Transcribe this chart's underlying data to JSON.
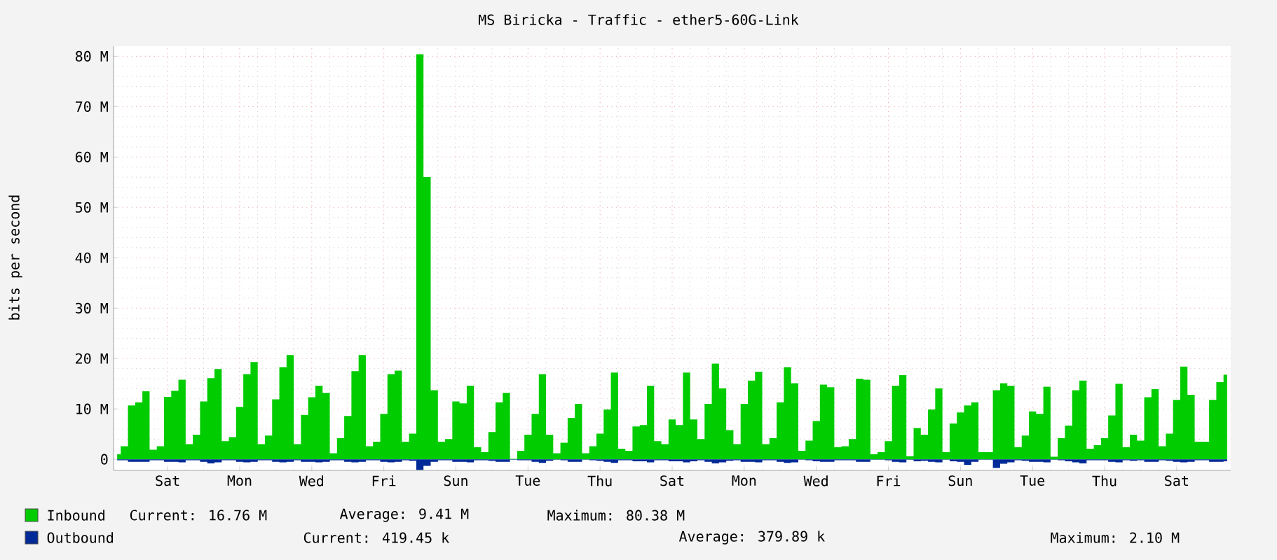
{
  "chart_data": {
    "type": "area",
    "title": "MS Biricka - Traffic - ether5-60G-Link",
    "ylabel": "bits per second",
    "categories": [
      null,
      null,
      null,
      null,
      null,
      null,
      null,
      "Sat",
      null,
      null,
      null,
      null,
      null,
      null,
      null,
      null,
      null,
      "Mon",
      null,
      null,
      null,
      null,
      null,
      null,
      null,
      null,
      null,
      "Wed",
      null,
      null,
      null,
      null,
      null,
      null,
      null,
      null,
      null,
      "Fri",
      null,
      null,
      null,
      null,
      null,
      null,
      null,
      null,
      null,
      "Sun",
      null,
      null,
      null,
      null,
      null,
      null,
      null,
      null,
      null,
      "Tue",
      null,
      null,
      null,
      null,
      null,
      null,
      null,
      null,
      null,
      "Thu",
      null,
      null,
      null,
      null,
      null,
      null,
      null,
      null,
      null,
      "Sat",
      null,
      null,
      null,
      null,
      null,
      null,
      null,
      null,
      null,
      "Mon",
      null,
      null,
      null,
      null,
      null,
      null,
      null,
      null,
      null,
      "Wed",
      null,
      null,
      null,
      null,
      null,
      null,
      null,
      null,
      null,
      "Fri",
      null,
      null,
      null,
      null,
      null,
      null,
      null,
      null,
      null,
      "Sun",
      null,
      null,
      null,
      null,
      null,
      null,
      null,
      null,
      null,
      "Tue",
      null,
      null,
      null,
      null,
      null,
      null,
      null,
      null,
      null,
      "Thu",
      null,
      null,
      null,
      null,
      null,
      null,
      null,
      null,
      null,
      "Sat",
      null,
      null,
      null,
      null,
      null,
      null,
      null
    ],
    "series": [
      {
        "name": "Inbound",
        "color": "#00cc00",
        "values": [
          1.0,
          2.6,
          10.7,
          11.3,
          13.5,
          1.9,
          2.6,
          12.4,
          13.6,
          15.8,
          3.0,
          4.9,
          11.5,
          16.1,
          17.9,
          3.6,
          4.4,
          10.4,
          16.9,
          19.3,
          3.0,
          4.7,
          11.9,
          18.3,
          20.7,
          3.0,
          8.8,
          12.3,
          14.6,
          13.2,
          1.2,
          4.2,
          8.6,
          17.5,
          20.7,
          2.6,
          3.5,
          9.0,
          16.9,
          17.6,
          3.5,
          5.1,
          80.4,
          56.0,
          13.7,
          3.5,
          4.0,
          11.5,
          11.1,
          14.6,
          2.4,
          1.4,
          5.4,
          11.3,
          13.2,
          0.1,
          1.7,
          4.9,
          9.0,
          16.9,
          4.9,
          1.2,
          3.3,
          8.2,
          11.0,
          1.2,
          2.6,
          5.1,
          9.9,
          17.2,
          2.1,
          1.7,
          6.5,
          6.8,
          14.6,
          3.6,
          3.0,
          7.9,
          6.8,
          17.2,
          7.9,
          4.0,
          11.0,
          19.0,
          14.1,
          5.8,
          3.0,
          11.0,
          15.6,
          17.4,
          3.0,
          4.2,
          11.3,
          18.3,
          15.1,
          1.7,
          3.7,
          7.6,
          14.8,
          14.3,
          2.4,
          2.6,
          4.0,
          16.0,
          15.8,
          1.0,
          1.4,
          3.6,
          14.6,
          16.7,
          0.6,
          6.2,
          4.9,
          9.9,
          14.1,
          1.4,
          7.1,
          9.3,
          10.7,
          11.3,
          1.4,
          1.4,
          13.7,
          15.1,
          14.6,
          2.4,
          4.7,
          9.5,
          9.0,
          14.4,
          0.5,
          4.2,
          6.7,
          13.7,
          15.6,
          2.1,
          2.8,
          4.2,
          8.7,
          15.0,
          2.4,
          4.9,
          3.7,
          12.3,
          13.9,
          2.6,
          5.1,
          11.8,
          18.4,
          12.8,
          3.5,
          3.5,
          11.8,
          15.3,
          16.8
        ]
      },
      {
        "name": "Outbound",
        "color": "#002a97",
        "values": [
          -0.2,
          -0.2,
          -0.5,
          -0.5,
          -0.5,
          -0.2,
          -0.2,
          -0.5,
          -0.5,
          -0.6,
          -0.2,
          -0.2,
          -0.5,
          -0.8,
          -0.6,
          -0.2,
          -0.2,
          -0.5,
          -0.6,
          -0.5,
          -0.2,
          -0.2,
          -0.5,
          -0.6,
          -0.5,
          -0.2,
          -0.5,
          -0.5,
          -0.6,
          -0.5,
          -0.2,
          -0.2,
          -0.5,
          -0.6,
          -0.5,
          -0.2,
          -0.2,
          -0.5,
          -0.6,
          -0.5,
          -0.2,
          -0.3,
          -2.1,
          -1.3,
          -0.5,
          -0.2,
          -0.2,
          -0.5,
          -0.5,
          -0.6,
          -0.2,
          -0.2,
          -0.3,
          -0.5,
          -0.5,
          -0.1,
          -0.2,
          -0.2,
          -0.5,
          -0.7,
          -0.3,
          -0.1,
          -0.2,
          -0.5,
          -0.5,
          -0.1,
          -0.2,
          -0.3,
          -0.5,
          -0.7,
          -0.2,
          -0.2,
          -0.4,
          -0.4,
          -0.6,
          -0.2,
          -0.2,
          -0.4,
          -0.4,
          -0.6,
          -0.4,
          -0.2,
          -0.5,
          -0.8,
          -0.6,
          -0.3,
          -0.2,
          -0.5,
          -0.5,
          -0.6,
          -0.2,
          -0.2,
          -0.5,
          -0.7,
          -0.6,
          -0.1,
          -0.2,
          -0.4,
          -0.5,
          -0.5,
          -0.2,
          -0.2,
          -0.2,
          -0.5,
          -0.5,
          -0.1,
          -0.1,
          -0.2,
          -0.5,
          -0.6,
          -0.1,
          -0.4,
          -0.3,
          -0.5,
          -0.6,
          -0.1,
          -0.4,
          -0.5,
          -1.1,
          -0.5,
          -0.1,
          -0.1,
          -1.7,
          -0.9,
          -0.6,
          -0.2,
          -0.3,
          -0.5,
          -0.5,
          -0.6,
          -0.1,
          -0.2,
          -0.4,
          -0.6,
          -0.8,
          -0.2,
          -0.2,
          -0.2,
          -0.5,
          -0.6,
          -0.2,
          -0.3,
          -0.2,
          -0.5,
          -0.5,
          -0.2,
          -0.3,
          -0.5,
          -0.6,
          -0.5,
          -0.2,
          -0.2,
          -0.5,
          -0.5,
          -0.4
        ]
      }
    ],
    "ylim": [
      -2.2,
      82
    ],
    "yticks": [
      0,
      {
        "value": 10,
        "label": "10 M"
      },
      {
        "value": 20,
        "label": "20 M"
      },
      {
        "value": 30,
        "label": "30 M"
      },
      {
        "value": 40,
        "label": "40 M"
      },
      {
        "value": 50,
        "label": "50 M"
      },
      {
        "value": 60,
        "label": "60 M"
      },
      {
        "value": 70,
        "label": "70 M"
      },
      {
        "value": 80,
        "label": "80 M"
      }
    ],
    "grid": true,
    "legend": "bottom",
    "annotations": [
      "Current: 16.76 M",
      "Average: 9.41 M",
      "Maximum: 80.38 M",
      "Current: 419.45 k",
      "Average: 379.89 k",
      "Maximum: 2.10 M"
    ]
  }
}
